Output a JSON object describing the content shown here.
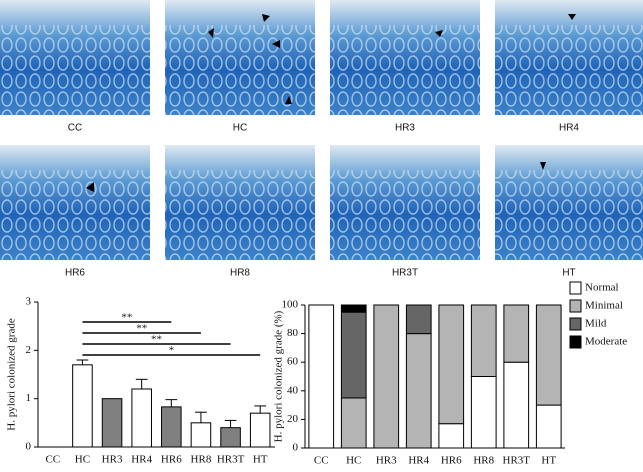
{
  "panels": [
    "CC",
    "HC",
    "HR3",
    "HR4",
    "HR6",
    "HR8",
    "HR3T",
    "HT"
  ],
  "chart_data": [
    {
      "type": "bar",
      "y_label": "H. pylori colonized grade",
      "categories": [
        "CC",
        "HC",
        "HR3",
        "HR4",
        "HR6",
        "HR8",
        "HR3T",
        "HT"
      ],
      "values": [
        0,
        1.7,
        1.0,
        1.2,
        0.83,
        0.5,
        0.4,
        0.7
      ],
      "errors": [
        0,
        0.1,
        0,
        0.2,
        0.15,
        0.22,
        0.15,
        0.15
      ],
      "colors": [
        "#ffffff",
        "#ffffff",
        "#808080",
        "#ffffff",
        "#808080",
        "#ffffff",
        "#808080",
        "#ffffff"
      ],
      "ylim": [
        0,
        3
      ],
      "yticks": [
        0,
        1,
        2,
        3
      ],
      "annotations": [
        {
          "label": "**",
          "from": "HC",
          "to": "HR6"
        },
        {
          "label": "**",
          "from": "HC",
          "to": "HR8"
        },
        {
          "label": "**",
          "from": "HC",
          "to": "HR3T"
        },
        {
          "label": "*",
          "from": "HC",
          "to": "HT"
        }
      ]
    },
    {
      "type": "stacked_bar",
      "y_label": "H. pylori colonized grade (%)",
      "categories": [
        "CC",
        "HC",
        "HR3",
        "HR4",
        "HR6",
        "HR8",
        "HR3T",
        "HT"
      ],
      "series": [
        {
          "name": "Normal",
          "color": "#ffffff",
          "values": [
            100,
            0,
            0,
            0,
            17,
            50,
            60,
            30
          ]
        },
        {
          "name": "Minimal",
          "color": "#b4b4b4",
          "values": [
            0,
            35,
            100,
            80,
            83,
            50,
            40,
            70
          ]
        },
        {
          "name": "Mild",
          "color": "#666666",
          "values": [
            0,
            60,
            0,
            20,
            0,
            0,
            0,
            0
          ]
        },
        {
          "name": "Moderate",
          "color": "#000000",
          "values": [
            0,
            5,
            0,
            0,
            0,
            0,
            0,
            0
          ]
        }
      ],
      "ylim": [
        0,
        100
      ],
      "yticks": [
        0,
        20,
        40,
        60,
        80,
        100
      ],
      "legend": "right"
    }
  ]
}
